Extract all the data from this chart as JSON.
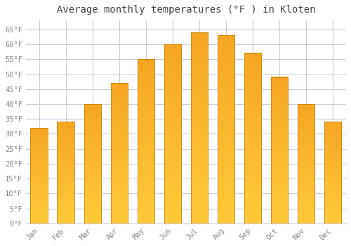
{
  "title": "Average monthly temperatures (°F ) in Kloten",
  "months": [
    "Jan",
    "Feb",
    "Mar",
    "Apr",
    "May",
    "Jun",
    "Jul",
    "Aug",
    "Sep",
    "Oct",
    "Nov",
    "Dec"
  ],
  "values": [
    32,
    34,
    40,
    47,
    55,
    60,
    64,
    63,
    57,
    49,
    40,
    34
  ],
  "bar_color_top": "#FFCA3A",
  "bar_color_bottom": "#F5A623",
  "bar_edge_color": "#C8880A",
  "background_color": "#FFFFFF",
  "plot_bg_color": "#FFFFFF",
  "grid_color": "#CCCCDD",
  "tick_label_color": "#888888",
  "title_color": "#444444",
  "ylim": [
    0,
    68
  ],
  "yticks": [
    0,
    5,
    10,
    15,
    20,
    25,
    30,
    35,
    40,
    45,
    50,
    55,
    60,
    65
  ],
  "ytick_labels": [
    "0°F",
    "5°F",
    "10°F",
    "15°F",
    "20°F",
    "25°F",
    "30°F",
    "35°F",
    "40°F",
    "45°F",
    "50°F",
    "55°F",
    "60°F",
    "65°F"
  ],
  "title_fontsize": 10,
  "tick_fontsize": 7.5,
  "font_family": "monospace",
  "bar_width": 0.65
}
